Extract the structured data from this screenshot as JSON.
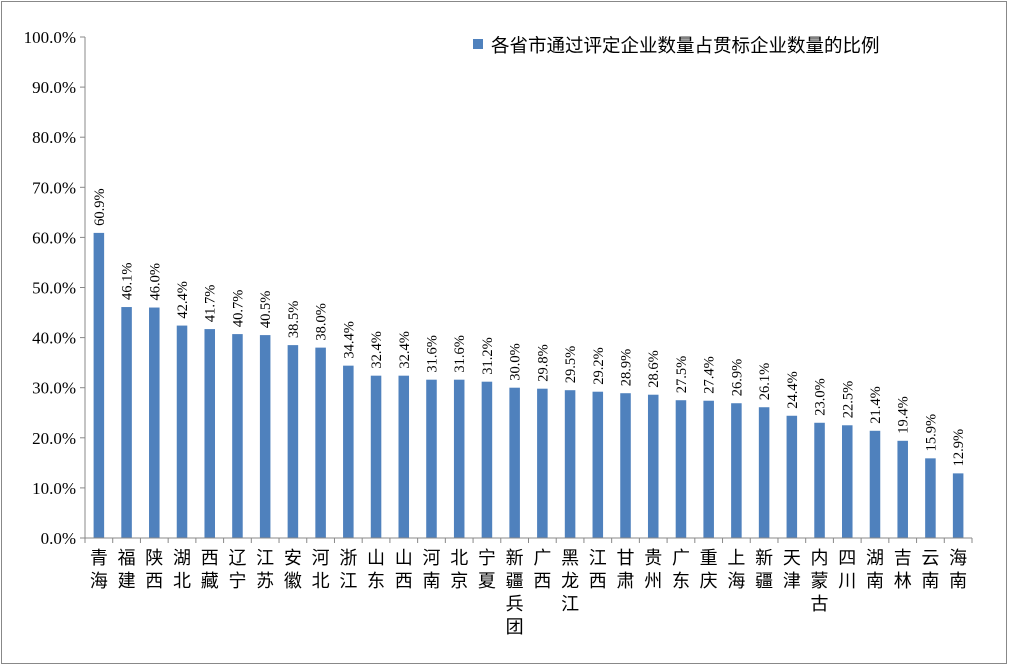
{
  "chart_data": {
    "type": "bar",
    "title": "",
    "xlabel": "",
    "ylabel": "",
    "ylim": [
      0,
      100
    ],
    "yticks": [
      "0.0%",
      "10.0%",
      "20.0%",
      "30.0%",
      "40.0%",
      "50.0%",
      "60.0%",
      "70.0%",
      "80.0%",
      "90.0%",
      "100.0%"
    ],
    "legend": "top-right",
    "grid": false,
    "bar_color": "#4F81BD",
    "series": [
      {
        "name": "各省市通过评定企业数量占贯标企业数量的比例",
        "values": [
          60.9,
          46.1,
          46.0,
          42.4,
          41.7,
          40.7,
          40.5,
          38.5,
          38.0,
          34.4,
          32.4,
          32.4,
          31.6,
          31.6,
          31.2,
          30.0,
          29.8,
          29.5,
          29.2,
          28.9,
          28.6,
          27.5,
          27.4,
          26.9,
          26.1,
          24.4,
          23.0,
          22.5,
          21.4,
          19.4,
          15.9,
          12.9
        ],
        "labels": [
          "60.9%",
          "46.1%",
          "46.0%",
          "42.4%",
          "41.7%",
          "40.7%",
          "40.5%",
          "38.5%",
          "38.0%",
          "34.4%",
          "32.4%",
          "32.4%",
          "31.6%",
          "31.6%",
          "31.2%",
          "30.0%",
          "29.8%",
          "29.5%",
          "29.2%",
          "28.9%",
          "28.6%",
          "27.5%",
          "27.4%",
          "26.9%",
          "26.1%",
          "24.4%",
          "23.0%",
          "22.5%",
          "21.4%",
          "19.4%",
          "15.9%",
          "12.9%"
        ]
      }
    ],
    "categories": [
      "青海",
      "福建",
      "陕西",
      "湖北",
      "西藏",
      "辽宁",
      "江苏",
      "安徽",
      "河北",
      "浙江",
      "山东",
      "山西",
      "河南",
      "北京",
      "宁夏",
      "新疆兵团",
      "广西",
      "黑龙江",
      "江西",
      "甘肃",
      "贵州",
      "广东",
      "重庆",
      "上海",
      "新疆",
      "天津",
      "内蒙古",
      "四川",
      "湖南",
      "吉林",
      "云南",
      "海南"
    ]
  }
}
